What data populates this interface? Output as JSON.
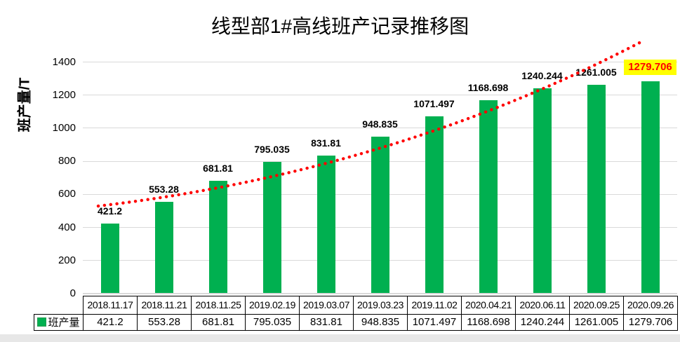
{
  "chart_data": {
    "type": "bar",
    "title": "线型部1#高线班产记录推移图",
    "ylabel": "班产量/T",
    "ylim": [
      0,
      1400
    ],
    "yticks": [
      0,
      200,
      400,
      600,
      800,
      1000,
      1200,
      1400
    ],
    "grid": true,
    "legend_position": "data-table-left",
    "categories": [
      "2018.11.17",
      "2018.11.21",
      "2018.11.25",
      "2019.02.19",
      "2019.03.07",
      "2019.03.23",
      "2019.11.02",
      "2020.04.21",
      "2020.06.11",
      "2020.09.25",
      "2020.09.26"
    ],
    "series": [
      {
        "name": "班产量",
        "values": [
          421.2,
          553.28,
          681.81,
          795.035,
          831.81,
          948.835,
          1071.497,
          1168.698,
          1240.244,
          1261.005,
          1279.706
        ]
      }
    ],
    "value_labels": [
      "421.2",
      "553.28",
      "681.81",
      "795.035",
      "831.81",
      "948.835",
      "1071.497",
      "1168.698",
      "1240.244",
      "1261.005",
      "1279.706"
    ],
    "data_table": true,
    "trendline": {
      "style": "dotted",
      "color": "#FF0000"
    },
    "highlight_index": 10
  },
  "colors": {
    "bar": "#00B050",
    "bar_swatch_border": "#1F9A50",
    "trend": "#FF0000",
    "highlight_bg": "#FFFF00",
    "highlight_text": "#FF0000",
    "gridline": "#D9D9D9",
    "table_border": "#000000",
    "text": "#000000",
    "footer_strip": "#E7E7E7"
  }
}
